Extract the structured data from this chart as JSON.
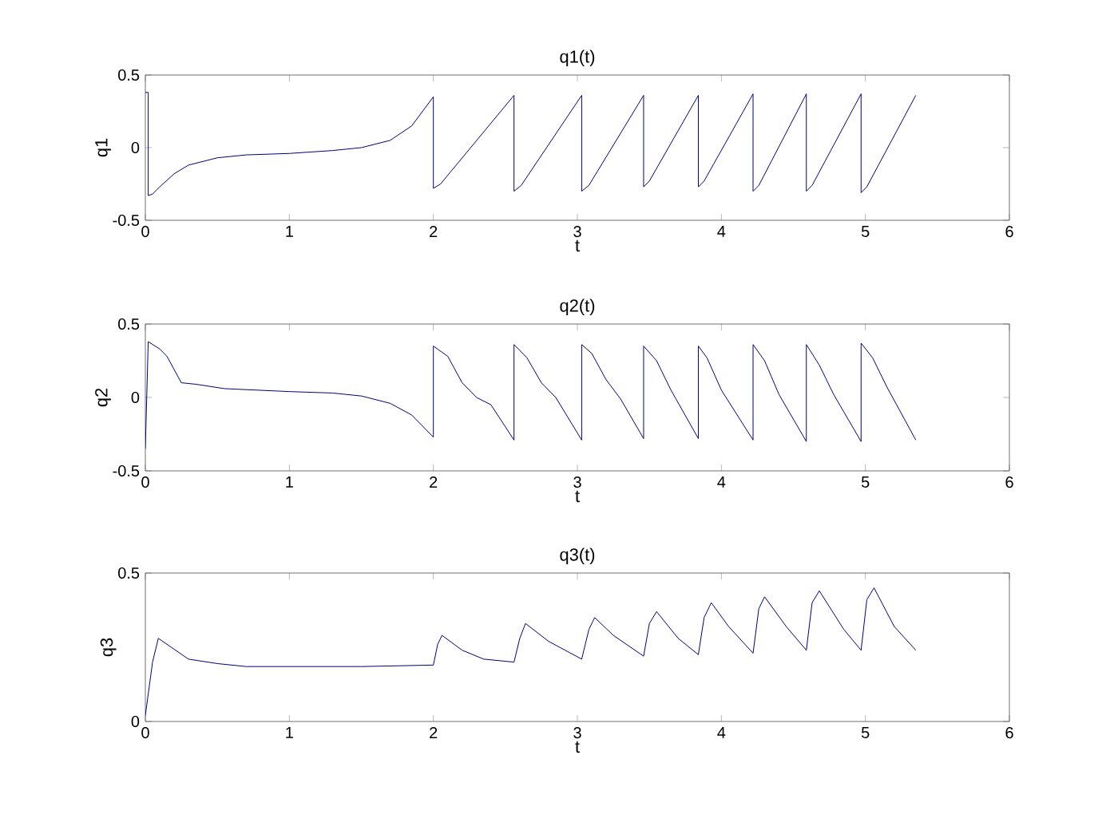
{
  "chart_data": [
    {
      "type": "line",
      "title": "q1(t)",
      "xlabel": "t",
      "ylabel": "q1",
      "color": "#00007f",
      "xlim": [
        0,
        6
      ],
      "ylim": [
        -0.5,
        0.5
      ],
      "xticks": [
        0,
        1,
        2,
        3,
        4,
        5,
        6
      ],
      "yticks": [
        -0.5,
        0,
        0.5
      ],
      "x": [
        0,
        0.02,
        0.02,
        0.05,
        0.1,
        0.2,
        0.3,
        0.5,
        0.7,
        1.0,
        1.3,
        1.5,
        1.7,
        1.85,
        2.0,
        2.0,
        2.05,
        2.56,
        2.56,
        2.61,
        3.03,
        3.03,
        3.08,
        3.46,
        3.46,
        3.5,
        3.84,
        3.84,
        3.88,
        4.22,
        4.22,
        4.26,
        4.59,
        4.59,
        4.63,
        4.97,
        4.97,
        5.01,
        5.35
      ],
      "values": [
        0.38,
        0.38,
        -0.33,
        -0.32,
        -0.27,
        -0.18,
        -0.12,
        -0.07,
        -0.05,
        -0.04,
        -0.02,
        0.0,
        0.05,
        0.15,
        0.35,
        -0.28,
        -0.25,
        0.36,
        -0.3,
        -0.26,
        0.36,
        -0.3,
        -0.26,
        0.36,
        -0.27,
        -0.23,
        0.36,
        -0.27,
        -0.23,
        0.37,
        -0.3,
        -0.26,
        0.37,
        -0.3,
        -0.26,
        0.37,
        -0.31,
        -0.27,
        0.36
      ]
    },
    {
      "type": "line",
      "title": "q2(t)",
      "xlabel": "t",
      "ylabel": "q2",
      "color": "#00007f",
      "xlim": [
        0,
        6
      ],
      "ylim": [
        -0.5,
        0.5
      ],
      "xticks": [
        0,
        1,
        2,
        3,
        4,
        5,
        6
      ],
      "yticks": [
        -0.5,
        0,
        0.5
      ],
      "x": [
        0,
        0.02,
        0.1,
        0.15,
        0.25,
        0.35,
        0.55,
        1.0,
        1.3,
        1.5,
        1.7,
        1.85,
        2.0,
        2.0,
        2.1,
        2.2,
        2.3,
        2.4,
        2.56,
        2.56,
        2.65,
        2.75,
        2.85,
        3.03,
        3.03,
        3.1,
        3.2,
        3.3,
        3.46,
        3.46,
        3.55,
        3.65,
        3.84,
        3.84,
        3.9,
        4.0,
        4.22,
        4.22,
        4.3,
        4.4,
        4.59,
        4.59,
        4.68,
        4.78,
        4.97,
        4.97,
        5.05,
        5.15,
        5.35
      ],
      "values": [
        -0.35,
        0.38,
        0.33,
        0.28,
        0.1,
        0.09,
        0.06,
        0.04,
        0.03,
        0.01,
        -0.04,
        -0.12,
        -0.27,
        0.35,
        0.28,
        0.1,
        0.0,
        -0.05,
        -0.29,
        0.36,
        0.27,
        0.1,
        0.0,
        -0.29,
        0.36,
        0.3,
        0.12,
        -0.01,
        -0.28,
        0.35,
        0.25,
        0.05,
        -0.28,
        0.35,
        0.27,
        0.05,
        -0.29,
        0.36,
        0.25,
        0.02,
        -0.3,
        0.36,
        0.22,
        0.02,
        -0.3,
        0.37,
        0.27,
        0.07,
        -0.29
      ]
    },
    {
      "type": "line",
      "title": "q3(t)",
      "xlabel": "t",
      "ylabel": "q3",
      "color": "#00007f",
      "xlim": [
        0,
        6
      ],
      "ylim": [
        0,
        0.5
      ],
      "xticks": [
        0,
        1,
        2,
        3,
        4,
        5,
        6
      ],
      "yticks": [
        0,
        0.5
      ],
      "x": [
        0,
        0.05,
        0.09,
        0.15,
        0.3,
        0.5,
        0.7,
        1.5,
        2.0,
        2.03,
        2.06,
        2.2,
        2.35,
        2.56,
        2.6,
        2.64,
        2.8,
        3.03,
        3.08,
        3.12,
        3.25,
        3.46,
        3.5,
        3.55,
        3.7,
        3.84,
        3.88,
        3.93,
        4.05,
        4.22,
        4.26,
        4.3,
        4.45,
        4.59,
        4.63,
        4.68,
        4.85,
        4.97,
        5.01,
        5.06,
        5.2,
        5.35
      ],
      "values": [
        0.02,
        0.2,
        0.28,
        0.26,
        0.21,
        0.195,
        0.185,
        0.185,
        0.19,
        0.26,
        0.29,
        0.24,
        0.21,
        0.2,
        0.28,
        0.33,
        0.27,
        0.21,
        0.31,
        0.35,
        0.29,
        0.22,
        0.33,
        0.37,
        0.28,
        0.225,
        0.35,
        0.4,
        0.32,
        0.23,
        0.38,
        0.42,
        0.32,
        0.24,
        0.4,
        0.44,
        0.31,
        0.24,
        0.41,
        0.45,
        0.32,
        0.24
      ]
    }
  ]
}
